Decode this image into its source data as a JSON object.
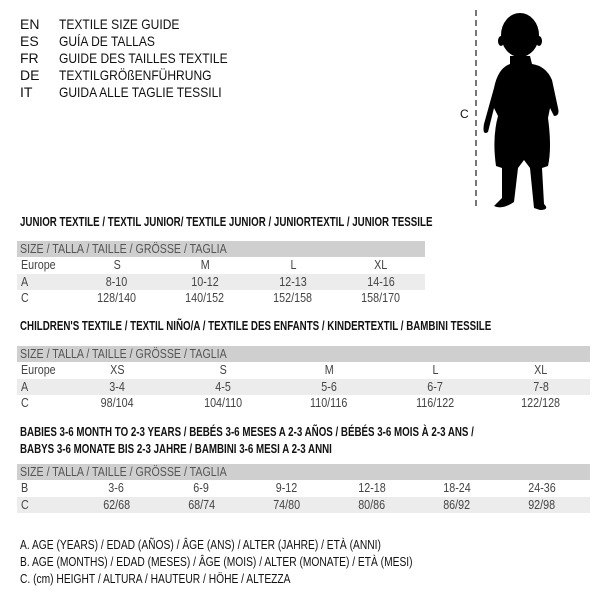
{
  "languages": [
    {
      "code": "EN",
      "text": "TEXTILE SIZE GUIDE"
    },
    {
      "code": "ES",
      "text": "GUÍA DE TALLAS"
    },
    {
      "code": "FR",
      "text": "GUIDE DES TAILLES TEXTILE"
    },
    {
      "code": "DE",
      "text": "TEXTILGRÖßENFÜHRUNG"
    },
    {
      "code": "IT",
      "text": "GUIDA ALLE TAGLIE TESSILI"
    }
  ],
  "figure": {
    "measure_label": "C",
    "icon": "child-silhouette"
  },
  "tables": [
    {
      "title_lines": [
        "JUNIOR TEXTILE / TEXTIL JUNIOR/ TEXTILE JUNIOR / JUNIORTEXTIL / JUNIOR TESSILE"
      ],
      "header": "SIZE / TALLA / TAILLE / GRÖSSE / TAGLIA",
      "rows": [
        {
          "label": "Europe",
          "cells": [
            "S",
            "M",
            "L",
            "XL"
          ]
        },
        {
          "label": "A",
          "cells": [
            "8-10",
            "10-12",
            "12-13",
            "14-16"
          ]
        },
        {
          "label": "C",
          "cells": [
            "128/140",
            "140/152",
            "152/158",
            "158/170"
          ]
        }
      ]
    },
    {
      "title_lines": [
        "CHILDREN'S TEXTILE / TEXTIL NIÑO/A / TEXTILE DES ENFANTS / KINDERTEXTIL / BAMBINI TESSILE"
      ],
      "header": "SIZE / TALLA / TAILLE / GRÖSSE / TAGLIA",
      "rows": [
        {
          "label": "Europe",
          "cells": [
            "XS",
            "S",
            "M",
            "L",
            "XL"
          ]
        },
        {
          "label": "A",
          "cells": [
            "3-4",
            "4-5",
            "5-6",
            "6-7",
            "7-8"
          ]
        },
        {
          "label": "C",
          "cells": [
            "98/104",
            "104/110",
            "110/116",
            "116/122",
            "122/128"
          ]
        }
      ]
    },
    {
      "title_lines": [
        "BABIES 3-6 MONTH TO 2-3 YEARS / BEBÉS 3-6 MESES A 2-3 AÑOS / BÉBÉS 3-6 MOIS À 2-3 ANS /",
        "BABYS 3-6 MONATE BIS 2-3 JAHRE / BAMBINI 3-6 MESI A 2-3 ANNI"
      ],
      "header": "SIZE / TALLA / TAILLE / GRÖSSE / TAGLIA",
      "rows": [
        {
          "label": "B",
          "cells": [
            "3-6",
            "6-9",
            "9-12",
            "12-18",
            "18-24",
            "24-36"
          ]
        },
        {
          "label": "C",
          "cells": [
            "62/68",
            "68/74",
            "74/80",
            "80/86",
            "86/92",
            "92/98"
          ]
        }
      ]
    }
  ],
  "legend": [
    "A. AGE (YEARS) / EDAD (AÑOS) / ÂGE (ANS) / ALTER (JAHRE) / ETÀ (ANNI)",
    "B. AGE (MONTHS) / EDAD (MESES) / ÂGE (MOIS) / ALTER (MONATE) / ETÀ (MESI)",
    "C. (cm) HEIGHT / ALTURA / HAUTEUR / HÖHE / ALTEZZA"
  ]
}
